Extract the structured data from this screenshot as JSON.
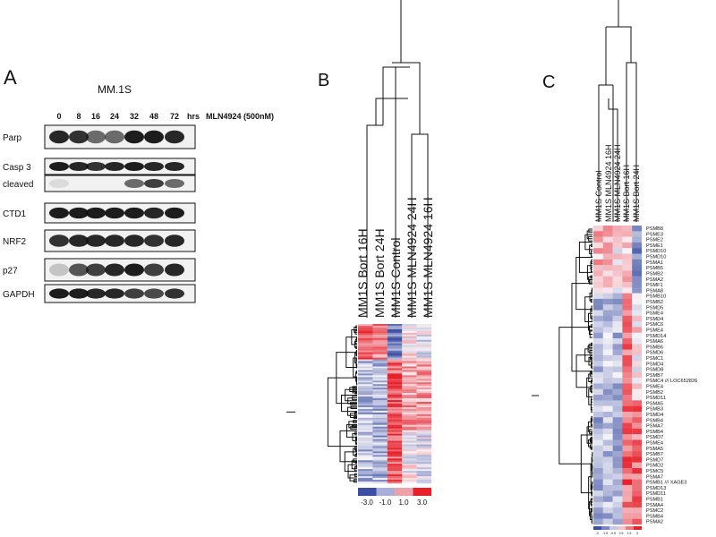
{
  "panels": {
    "a": {
      "label": "A",
      "cell_line": "MM.1S",
      "lanes": [
        "0",
        "8",
        "16",
        "24",
        "32",
        "48",
        "72"
      ],
      "time_unit": "hrs",
      "treatment": "MLN4924 (500nM)",
      "blots": [
        "Parp",
        "Casp 3",
        "cleaved",
        "CTD1",
        "NRF2",
        "p27",
        "GAPDH"
      ]
    },
    "b": {
      "label": "B",
      "columns": [
        "MM1S Bort 16H",
        "MM1S Bort 24H",
        "MM1S Control",
        "MM1S MLN4924 24H",
        "MM1S MLN4924 16H"
      ],
      "scale": [
        "-3.0",
        "-1.0",
        "1.0",
        "3.0"
      ]
    },
    "c": {
      "label": "C",
      "columns": [
        "MM1S Control",
        "MM1S MLN4924 16H",
        "MM1S MLN4924 24H",
        "MM1S Bort 16H",
        "MM1S Bort 24H"
      ],
      "genes": [
        "PSMB8",
        "PSME3",
        "PSME2",
        "PSME1",
        "PSMD10",
        "PSMD10",
        "PSMA1",
        "PSMB5",
        "PSMB2",
        "PSMA2",
        "PSMF1",
        "PSMA8",
        "PSMB10",
        "PSMB2",
        "PSMD5",
        "PSME4",
        "PSMD4",
        "PSMC6",
        "PSME4",
        "PSMD14",
        "PSMA6",
        "PSMB6",
        "PSMD6",
        "PSMC1",
        "PSMD4",
        "PSMD8",
        "PSMB7",
        "PSMC4 /// LOC652826",
        "PSME4",
        "PSMB2",
        "PSMD11",
        "PSMA5",
        "PSMB3",
        "PSMD4",
        "PSMB4",
        "PSMA7",
        "PSMB4",
        "PSMD7",
        "PSME4",
        "PSMA5",
        "PSMB7",
        "PSMD7",
        "PSMD2",
        "PSMC5",
        "PSMA7",
        "PSMB1 /// XAGE3",
        "PSMD13",
        "PSMD11",
        "PSMB1",
        "PSMA4",
        "PSMC2",
        "PSMB4",
        "PSMA2"
      ],
      "scale": [
        "-3",
        "-1.5",
        "-0.5",
        "0.5",
        "1.5",
        "3"
      ]
    }
  }
}
